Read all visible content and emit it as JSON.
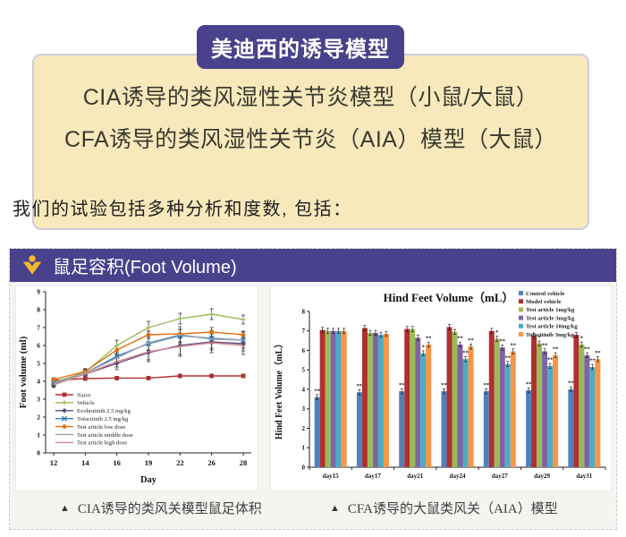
{
  "banner": {
    "badge": "美迪西的诱导模型",
    "lines": [
      "CIA诱导的类风湿性关节炎模型（小鼠/大鼠）",
      "CFA诱导的类风湿性关节炎（AIA）模型（大鼠）"
    ]
  },
  "intro_text": "我们的试验包括多种分析和度数, 包括：",
  "panel": {
    "title": "鼠足容积(Foot Volume)",
    "captions": [
      {
        "marker": "▲",
        "text": "CIA诱导的类风关模型鼠足体积"
      },
      {
        "marker": "▲",
        "text": "CFA诱导的大鼠类风关（AIA）模型"
      }
    ]
  },
  "colors": {
    "purple": "#49418c",
    "cream": "#f7e9bc",
    "cream_border": "#cfc9e0",
    "gold": "#f2b72c",
    "panel_bg": "#f5f4f1"
  },
  "chart_data": [
    {
      "type": "line",
      "title": "",
      "xlabel": "Day",
      "ylabel": "Foot volume (ml)",
      "x": [
        12,
        14,
        16,
        19,
        22,
        26,
        28
      ],
      "ylim": [
        0,
        9
      ],
      "ytick_step": 1,
      "grid": false,
      "legend_position": "inside lower-left",
      "series": [
        {
          "name": "Naive",
          "color": "#b03030",
          "marker": "square",
          "values": [
            4.05,
            4.15,
            4.18,
            4.18,
            4.3,
            4.3,
            4.3
          ],
          "err": [
            0.1,
            0.1,
            0.1,
            0.1,
            0.1,
            0.1,
            0.1
          ]
        },
        {
          "name": "Vehicle",
          "color": "#9bbb59",
          "marker": "plus",
          "values": [
            3.95,
            4.5,
            6.0,
            7.0,
            7.5,
            7.75,
            7.45
          ],
          "err": [
            0.15,
            0.2,
            0.3,
            0.35,
            0.3,
            0.3,
            0.25
          ]
        },
        {
          "name": "Evobrutinib 2.5 mg/kg",
          "color": "#5c497e",
          "marker": "diamond",
          "values": [
            3.85,
            4.4,
            5.0,
            5.6,
            6.0,
            6.2,
            6.1
          ],
          "err": [
            0.15,
            0.2,
            0.35,
            0.5,
            0.5,
            0.45,
            0.4
          ]
        },
        {
          "name": "Tofacitinib 2.5 mg/kg",
          "color": "#3b7bb8",
          "marker": "x",
          "values": [
            3.9,
            4.45,
            5.4,
            6.1,
            6.55,
            6.4,
            6.3
          ],
          "err": [
            0.15,
            0.2,
            0.3,
            0.4,
            0.35,
            0.3,
            0.3
          ]
        },
        {
          "name": "Test article low dose",
          "color": "#e2700f",
          "marker": "circle",
          "values": [
            4.1,
            4.55,
            5.75,
            6.6,
            6.65,
            6.75,
            6.6
          ],
          "err": [
            0.1,
            0.15,
            0.25,
            0.2,
            0.25,
            0.25,
            0.2
          ]
        },
        {
          "name": "Test article middle dose",
          "color": "#9fa8b0",
          "marker": "none",
          "values": [
            3.88,
            4.45,
            5.3,
            6.15,
            6.6,
            6.35,
            6.3
          ],
          "err": [
            0.15,
            0.2,
            0.3,
            0.4,
            0.45,
            0.5,
            0.45
          ]
        },
        {
          "name": "Test article high dose",
          "color": "#d2848a",
          "marker": "none",
          "values": [
            3.8,
            4.4,
            5.1,
            5.65,
            5.95,
            6.15,
            6.0
          ],
          "err": [
            0.15,
            0.2,
            0.3,
            0.45,
            0.55,
            0.55,
            0.5
          ]
        }
      ]
    },
    {
      "type": "bar",
      "title": "Hind Feet Volume（mL）",
      "xlabel": "",
      "ylabel": "Hind Feet Volume（mL）",
      "categories": [
        "day15",
        "day17",
        "day21",
        "day24",
        "day27",
        "day29",
        "day31"
      ],
      "ylim": [
        0,
        8
      ],
      "ytick_step": 1,
      "grid": false,
      "legend_position": "upper-right",
      "error_bar": 0.13,
      "series": [
        {
          "name": "Control vehicle",
          "color": "#4f81bd",
          "values": [
            3.6,
            3.85,
            3.9,
            3.9,
            3.9,
            3.95,
            4.0
          ],
          "sig": [
            "**",
            "**",
            "**",
            "**",
            "**",
            "**",
            "**"
          ]
        },
        {
          "name": "Model vehicle",
          "color": "#b03030",
          "values": [
            7.05,
            7.15,
            7.1,
            7.2,
            7.0,
            6.75,
            6.8
          ],
          "sig": [
            "",
            "",
            "",
            "",
            "",
            "",
            ""
          ]
        },
        {
          "name": "Test article 1mg/kg",
          "color": "#9bbb59",
          "values": [
            7.0,
            6.9,
            7.1,
            6.95,
            6.6,
            6.35,
            6.3
          ],
          "sig": [
            "",
            "",
            "",
            "",
            "*",
            "*",
            "*"
          ]
        },
        {
          "name": "Test article 3mg/kg",
          "color": "#8064a2",
          "values": [
            7.0,
            6.9,
            6.65,
            6.3,
            6.15,
            5.95,
            5.75
          ],
          "sig": [
            "",
            "",
            "",
            "**",
            "**",
            "**",
            "**"
          ]
        },
        {
          "name": "Test article 10mg/kg",
          "color": "#4bacc6",
          "values": [
            7.0,
            6.8,
            5.85,
            5.55,
            5.3,
            5.2,
            5.15
          ],
          "sig": [
            "",
            "",
            "*",
            "**",
            "**",
            "**",
            "**"
          ]
        },
        {
          "name": "Tofacitinib 3mg/kg",
          "color": "#f79646",
          "values": [
            7.0,
            6.85,
            6.3,
            6.2,
            5.95,
            5.75,
            5.55
          ],
          "sig": [
            "",
            "",
            "**",
            "**",
            "**",
            "**",
            "**"
          ]
        }
      ]
    }
  ]
}
